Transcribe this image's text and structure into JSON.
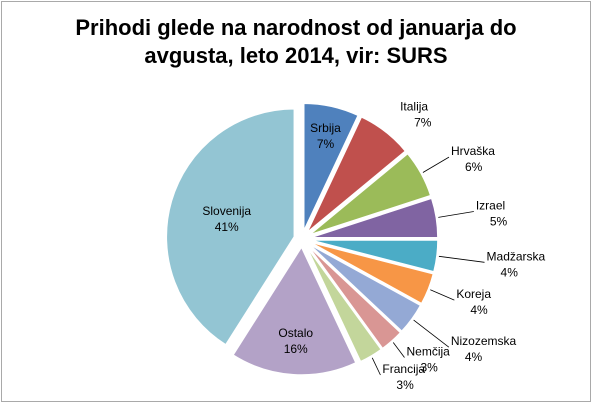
{
  "chart_data": {
    "type": "pie",
    "title_lines": [
      "Prihodi  glede na narodnost od januarja do",
      "avgusta, leto 2014, vir: SURS"
    ],
    "slices": [
      {
        "label": "Srbija",
        "value": 7,
        "value_label": "7%",
        "color": "#4f81bd"
      },
      {
        "label": "Italija",
        "value": 7,
        "value_label": "7%",
        "color": "#c0504d"
      },
      {
        "label": "Hrvaška",
        "value": 6,
        "value_label": "6%",
        "color": "#9bbb59"
      },
      {
        "label": "Izrael",
        "value": 5,
        "value_label": "5%",
        "color": "#8064a2"
      },
      {
        "label": "Madžarska",
        "value": 4,
        "value_label": "4%",
        "color": "#4bacc6"
      },
      {
        "label": "Koreja",
        "value": 4,
        "value_label": "4%",
        "color": "#f79646"
      },
      {
        "label": "Nizozemska",
        "value": 4,
        "value_label": "4%",
        "color": "#94a9d5"
      },
      {
        "label": "Nemčija",
        "value": 3,
        "value_label": "3%",
        "color": "#d99694"
      },
      {
        "label": "Francija",
        "value": 3,
        "value_label": "3%",
        "color": "#c3d69b"
      },
      {
        "label": "Ostalo",
        "value": 16,
        "value_label": "16%",
        "color": "#b3a2c7"
      },
      {
        "label": "Slovenija",
        "value": 41,
        "value_label": "41%",
        "color": "#93c5d3"
      }
    ],
    "exploded": true,
    "legend": "none"
  }
}
